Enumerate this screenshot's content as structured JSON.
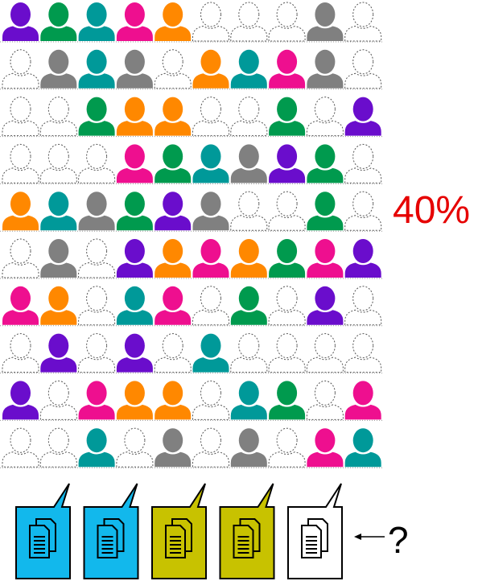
{
  "percent_label": "40%",
  "question_label": "?",
  "colors": {
    "purple": "#6a0dcc",
    "green": "#009a4e",
    "teal": "#009999",
    "pink": "#ee0f8f",
    "orange": "#ff8800",
    "gray": "#808080",
    "empty": "#ffffff",
    "blue_doc": "#12b8ec",
    "olive_doc": "#c8c200",
    "white_doc": "#ffffff"
  },
  "people_grid": [
    [
      "purple",
      "green",
      "teal",
      "pink",
      "orange",
      "empty",
      "empty",
      "empty",
      "gray",
      "empty"
    ],
    [
      "empty",
      "gray",
      "teal",
      "gray",
      "empty",
      "orange",
      "teal",
      "pink",
      "gray",
      "empty"
    ],
    [
      "empty",
      "empty",
      "green",
      "orange",
      "orange",
      "empty",
      "empty",
      "green",
      "empty",
      "purple"
    ],
    [
      "empty",
      "empty",
      "empty",
      "pink",
      "green",
      "teal",
      "gray",
      "purple",
      "green",
      "empty"
    ],
    [
      "orange",
      "teal",
      "gray",
      "green",
      "purple",
      "gray",
      "empty",
      "empty",
      "green",
      "empty"
    ],
    [
      "empty",
      "gray",
      "empty",
      "purple",
      "orange",
      "pink",
      "orange",
      "green",
      "pink",
      "purple"
    ],
    [
      "pink",
      "orange",
      "empty",
      "teal",
      "pink",
      "empty",
      "green",
      "empty",
      "purple",
      "empty"
    ],
    [
      "empty",
      "purple",
      "empty",
      "purple",
      "empty",
      "teal",
      "empty",
      "empty",
      "empty",
      "empty"
    ],
    [
      "purple",
      "empty",
      "pink",
      "orange",
      "orange",
      "empty",
      "teal",
      "green",
      "empty",
      "pink"
    ],
    [
      "empty",
      "empty",
      "teal",
      "empty",
      "gray",
      "empty",
      "gray",
      "empty",
      "pink",
      "teal"
    ]
  ],
  "documents": [
    {
      "color": "blue_doc",
      "icon": "document-stack-icon"
    },
    {
      "color": "blue_doc",
      "icon": "document-stack-icon"
    },
    {
      "color": "olive_doc",
      "icon": "document-stack-icon"
    },
    {
      "color": "olive_doc",
      "icon": "document-stack-icon"
    },
    {
      "color": "white_doc",
      "icon": "document-stack-icon"
    }
  ],
  "arrow_icon": "left-arrow-icon"
}
